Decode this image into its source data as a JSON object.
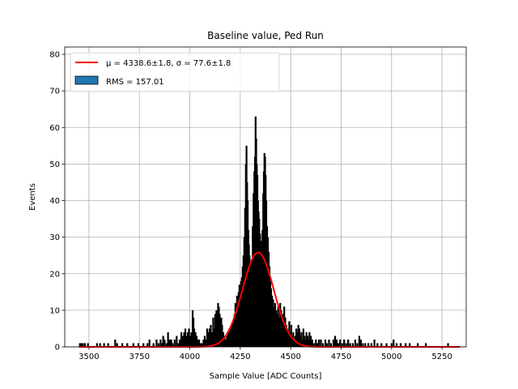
{
  "chart_data": {
    "type": "bar",
    "title": "Baseline value, Ped Run",
    "xlabel": "Sample Value [ADC Counts]",
    "ylabel": "Events",
    "xlim": [
      3380,
      5370
    ],
    "ylim": [
      0,
      82
    ],
    "xticks": [
      3500,
      3750,
      4000,
      4250,
      4500,
      4750,
      5000,
      5250
    ],
    "yticks": [
      0,
      10,
      20,
      30,
      40,
      50,
      60,
      70,
      80
    ],
    "grid": true,
    "legend_position": "upper-left",
    "legend": [
      {
        "label": "$\\mu = 4338.6 \\pm 1.8, \\sigma = 77.6 \\pm 1.8$",
        "display": "μ = 4338.6±1.8, σ = 77.6±1.8",
        "kind": "line",
        "color": "#ff0000"
      },
      {
        "label": "RMS = 157.01",
        "display": "RMS = 157.01",
        "kind": "patch",
        "color": "#1f77b4"
      }
    ],
    "histogram": {
      "bins": [
        [
          3455,
          1
        ],
        [
          3462,
          1
        ],
        [
          3470,
          1
        ],
        [
          3480,
          1
        ],
        [
          3495,
          1
        ],
        [
          3540,
          1
        ],
        [
          3555,
          1
        ],
        [
          3575,
          1
        ],
        [
          3595,
          1
        ],
        [
          3630,
          2
        ],
        [
          3640,
          1
        ],
        [
          3665,
          1
        ],
        [
          3690,
          1
        ],
        [
          3720,
          1
        ],
        [
          3745,
          1
        ],
        [
          3770,
          1
        ],
        [
          3790,
          1
        ],
        [
          3800,
          2
        ],
        [
          3820,
          1
        ],
        [
          3835,
          2
        ],
        [
          3845,
          1
        ],
        [
          3855,
          2
        ],
        [
          3862,
          1
        ],
        [
          3868,
          3
        ],
        [
          3875,
          2
        ],
        [
          3885,
          1
        ],
        [
          3892,
          4
        ],
        [
          3900,
          2
        ],
        [
          3908,
          2
        ],
        [
          3915,
          1
        ],
        [
          3925,
          2
        ],
        [
          3935,
          3
        ],
        [
          3942,
          1
        ],
        [
          3950,
          2
        ],
        [
          3958,
          4
        ],
        [
          3965,
          3
        ],
        [
          3972,
          4
        ],
        [
          3978,
          5
        ],
        [
          3984,
          3
        ],
        [
          3990,
          4
        ],
        [
          3996,
          5
        ],
        [
          4002,
          3
        ],
        [
          4008,
          4
        ],
        [
          4014,
          10
        ],
        [
          4018,
          8
        ],
        [
          4022,
          5
        ],
        [
          4028,
          4
        ],
        [
          4034,
          3
        ],
        [
          4040,
          2
        ],
        [
          4046,
          2
        ],
        [
          4052,
          1
        ],
        [
          4060,
          1
        ],
        [
          4068,
          2
        ],
        [
          4074,
          3
        ],
        [
          4080,
          2
        ],
        [
          4086,
          5
        ],
        [
          4092,
          4
        ],
        [
          4098,
          5
        ],
        [
          4104,
          6
        ],
        [
          4110,
          4
        ],
        [
          4116,
          8
        ],
        [
          4120,
          5
        ],
        [
          4126,
          9
        ],
        [
          4132,
          10
        ],
        [
          4136,
          9
        ],
        [
          4140,
          12
        ],
        [
          4144,
          11
        ],
        [
          4148,
          9
        ],
        [
          4152,
          7
        ],
        [
          4156,
          8
        ],
        [
          4160,
          6
        ],
        [
          4166,
          4
        ],
        [
          4172,
          3
        ],
        [
          4178,
          2
        ],
        [
          4184,
          3
        ],
        [
          4190,
          4
        ],
        [
          4196,
          5
        ],
        [
          4202,
          5
        ],
        [
          4208,
          6
        ],
        [
          4214,
          7
        ],
        [
          4218,
          4
        ],
        [
          4222,
          9
        ],
        [
          4226,
          12
        ],
        [
          4230,
          10
        ],
        [
          4234,
          14
        ],
        [
          4238,
          13
        ],
        [
          4242,
          15
        ],
        [
          4246,
          17
        ],
        [
          4250,
          16
        ],
        [
          4254,
          18
        ],
        [
          4258,
          19
        ],
        [
          4262,
          22
        ],
        [
          4266,
          25
        ],
        [
          4270,
          30
        ],
        [
          4274,
          38
        ],
        [
          4278,
          50
        ],
        [
          4281,
          55
        ],
        [
          4284,
          45
        ],
        [
          4287,
          40
        ],
        [
          4290,
          32
        ],
        [
          4293,
          28
        ],
        [
          4296,
          25
        ],
        [
          4300,
          23
        ],
        [
          4304,
          20
        ],
        [
          4308,
          24
        ],
        [
          4312,
          33
        ],
        [
          4316,
          42
        ],
        [
          4320,
          48
        ],
        [
          4323,
          52
        ],
        [
          4326,
          63
        ],
        [
          4329,
          57
        ],
        [
          4332,
          50
        ],
        [
          4335,
          47
        ],
        [
          4338,
          40
        ],
        [
          4341,
          37
        ],
        [
          4344,
          35
        ],
        [
          4348,
          31
        ],
        [
          4352,
          29
        ],
        [
          4356,
          27
        ],
        [
          4360,
          32
        ],
        [
          4364,
          42
        ],
        [
          4367,
          48
        ],
        [
          4370,
          53
        ],
        [
          4373,
          52
        ],
        [
          4376,
          47
        ],
        [
          4379,
          40
        ],
        [
          4383,
          33
        ],
        [
          4387,
          30
        ],
        [
          4391,
          26
        ],
        [
          4395,
          22
        ],
        [
          4399,
          18
        ],
        [
          4403,
          16
        ],
        [
          4408,
          14
        ],
        [
          4413,
          13
        ],
        [
          4418,
          11
        ],
        [
          4423,
          12
        ],
        [
          4428,
          10
        ],
        [
          4433,
          9
        ],
        [
          4438,
          11
        ],
        [
          4443,
          8
        ],
        [
          4448,
          12
        ],
        [
          4453,
          10
        ],
        [
          4458,
          7
        ],
        [
          4463,
          9
        ],
        [
          4468,
          11
        ],
        [
          4473,
          8
        ],
        [
          4478,
          6
        ],
        [
          4483,
          5
        ],
        [
          4488,
          4
        ],
        [
          4493,
          7
        ],
        [
          4498,
          4
        ],
        [
          4503,
          6
        ],
        [
          4508,
          3
        ],
        [
          4513,
          4
        ],
        [
          4518,
          2
        ],
        [
          4523,
          3
        ],
        [
          4528,
          5
        ],
        [
          4533,
          4
        ],
        [
          4538,
          6
        ],
        [
          4543,
          5
        ],
        [
          4548,
          3
        ],
        [
          4553,
          4
        ],
        [
          4558,
          2
        ],
        [
          4563,
          5
        ],
        [
          4568,
          3
        ],
        [
          4573,
          2
        ],
        [
          4578,
          4
        ],
        [
          4583,
          3
        ],
        [
          4588,
          2
        ],
        [
          4593,
          4
        ],
        [
          4600,
          3
        ],
        [
          4607,
          2
        ],
        [
          4615,
          1
        ],
        [
          4625,
          2
        ],
        [
          4632,
          1
        ],
        [
          4640,
          2
        ],
        [
          4650,
          2
        ],
        [
          4660,
          1
        ],
        [
          4672,
          2
        ],
        [
          4680,
          1
        ],
        [
          4690,
          2
        ],
        [
          4700,
          1
        ],
        [
          4712,
          2
        ],
        [
          4720,
          3
        ],
        [
          4728,
          2
        ],
        [
          4736,
          1
        ],
        [
          4745,
          2
        ],
        [
          4755,
          1
        ],
        [
          4765,
          2
        ],
        [
          4775,
          1
        ],
        [
          4785,
          2
        ],
        [
          4795,
          1
        ],
        [
          4808,
          1
        ],
        [
          4820,
          2
        ],
        [
          4830,
          1
        ],
        [
          4840,
          3
        ],
        [
          4848,
          2
        ],
        [
          4858,
          1
        ],
        [
          4870,
          1
        ],
        [
          4885,
          1
        ],
        [
          4900,
          1
        ],
        [
          4915,
          2
        ],
        [
          4930,
          1
        ],
        [
          4950,
          1
        ],
        [
          4975,
          1
        ],
        [
          5000,
          1
        ],
        [
          5010,
          2
        ],
        [
          5025,
          1
        ],
        [
          5045,
          1
        ],
        [
          5070,
          1
        ],
        [
          5090,
          1
        ],
        [
          5130,
          1
        ],
        [
          5170,
          1
        ],
        [
          5280,
          1
        ]
      ]
    },
    "fit": {
      "type": "gaussian",
      "mu": 4338.6,
      "sigma": 77.6,
      "amplitude": 25.8,
      "x_range": [
        3450,
        5340
      ],
      "color": "#ff0000"
    }
  }
}
